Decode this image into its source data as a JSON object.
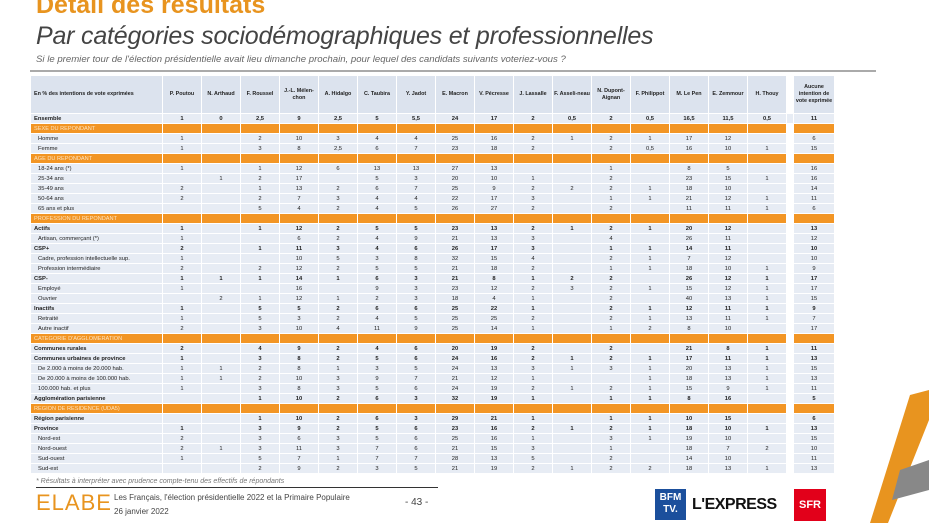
{
  "title": "Détail des résultats",
  "subtitle": "Par catégories sociodémographiques et professionnelles",
  "question": "Si le premier tour de l'élection présidentielle avait lieu dimanche prochain, pour lequel des candidats suivants voteriez-vous ?",
  "table": {
    "corner_label": "En % des intentions de vote exprimées",
    "columns": [
      "P. Poutou",
      "N. Arthaud",
      "F. Roussel",
      "J.-L. Mélen-chon",
      "A. Hidalgo",
      "C. Taubira",
      "Y. Jadot",
      "E. Macron",
      "V. Pécresse",
      "J. Lassalle",
      "F. Asseli-neau",
      "N. Dupont-Aignan",
      "F. Philippot",
      "M. Le Pen",
      "E. Zemmour",
      "H. Thouy",
      "Aucune intention de vote exprimée"
    ],
    "rows": [
      {
        "type": "total",
        "label": "Ensemble",
        "values": [
          "1",
          "0",
          "2,5",
          "9",
          "2,5",
          "5",
          "5,5",
          "24",
          "17",
          "2",
          "0,5",
          "2",
          "0,5",
          "16,5",
          "11,5",
          "0,5",
          "11"
        ]
      },
      {
        "type": "section",
        "label": "SEXE DU REPONDANT"
      },
      {
        "type": "sub",
        "label": "Homme",
        "values": [
          "1",
          "",
          "2",
          "10",
          "3",
          "4",
          "4",
          "25",
          "16",
          "2",
          "1",
          "2",
          "1",
          "17",
          "12",
          "",
          "6"
        ]
      },
      {
        "type": "sub",
        "label": "Femme",
        "values": [
          "1",
          "",
          "3",
          "8",
          "2,5",
          "6",
          "7",
          "23",
          "18",
          "2",
          "",
          "2",
          "0,5",
          "16",
          "10",
          "1",
          "15"
        ]
      },
      {
        "type": "section",
        "label": "AGE DU REPONDANT"
      },
      {
        "type": "sub",
        "label": "18-24 ans (*)",
        "values": [
          "1",
          "",
          "1",
          "12",
          "6",
          "13",
          "13",
          "27",
          "13",
          "",
          "",
          "1",
          "",
          "8",
          "5",
          "",
          "16"
        ]
      },
      {
        "type": "sub",
        "label": "25-34 ans",
        "values": [
          "",
          "1",
          "2",
          "17",
          "",
          "5",
          "3",
          "20",
          "10",
          "1",
          "",
          "2",
          "",
          "23",
          "15",
          "1",
          "16"
        ]
      },
      {
        "type": "sub",
        "label": "35-49 ans",
        "values": [
          "2",
          "",
          "1",
          "13",
          "2",
          "6",
          "7",
          "25",
          "9",
          "2",
          "2",
          "2",
          "1",
          "18",
          "10",
          "",
          "14"
        ]
      },
      {
        "type": "sub",
        "label": "50-64 ans",
        "values": [
          "2",
          "",
          "2",
          "7",
          "3",
          "4",
          "4",
          "22",
          "17",
          "3",
          "",
          "1",
          "1",
          "21",
          "12",
          "1",
          "11"
        ]
      },
      {
        "type": "sub",
        "label": "65 ans et plus",
        "values": [
          "",
          "",
          "5",
          "4",
          "2",
          "4",
          "5",
          "26",
          "27",
          "2",
          "",
          "2",
          "",
          "11",
          "11",
          "1",
          "6"
        ]
      },
      {
        "type": "section",
        "label": "PROFESSION DU REPONDANT"
      },
      {
        "type": "bold",
        "label": "Actifs",
        "values": [
          "1",
          "",
          "1",
          "12",
          "2",
          "5",
          "5",
          "23",
          "13",
          "2",
          "1",
          "2",
          "1",
          "20",
          "12",
          "",
          "13"
        ]
      },
      {
        "type": "sub",
        "label": "Artisan, commerçant (*)",
        "values": [
          "1",
          "",
          "",
          "6",
          "2",
          "4",
          "9",
          "21",
          "13",
          "3",
          "",
          "4",
          "",
          "26",
          "11",
          "",
          "12"
        ]
      },
      {
        "type": "bold",
        "label": "CSP+",
        "values": [
          "2",
          "",
          "1",
          "11",
          "3",
          "4",
          "6",
          "26",
          "17",
          "3",
          "",
          "1",
          "1",
          "14",
          "11",
          "",
          "10"
        ]
      },
      {
        "type": "sub",
        "label": "Cadre, profession intellectuelle sup.",
        "values": [
          "1",
          "",
          "",
          "10",
          "5",
          "3",
          "8",
          "32",
          "15",
          "4",
          "",
          "2",
          "1",
          "7",
          "12",
          "",
          "10"
        ]
      },
      {
        "type": "sub",
        "label": "Profession intermédiaire",
        "values": [
          "2",
          "",
          "2",
          "12",
          "2",
          "5",
          "5",
          "21",
          "18",
          "2",
          "",
          "1",
          "1",
          "18",
          "10",
          "1",
          "9"
        ]
      },
      {
        "type": "bold",
        "label": "CSP-",
        "values": [
          "1",
          "1",
          "1",
          "14",
          "1",
          "6",
          "3",
          "21",
          "8",
          "1",
          "2",
          "2",
          "",
          "26",
          "12",
          "1",
          "17"
        ]
      },
      {
        "type": "sub",
        "label": "Employé",
        "values": [
          "1",
          "",
          "",
          "16",
          "",
          "9",
          "3",
          "23",
          "12",
          "2",
          "3",
          "2",
          "1",
          "15",
          "12",
          "1",
          "17"
        ]
      },
      {
        "type": "sub",
        "label": "Ouvrier",
        "values": [
          "",
          "2",
          "1",
          "12",
          "1",
          "2",
          "3",
          "18",
          "4",
          "1",
          "",
          "2",
          "",
          "40",
          "13",
          "1",
          "15"
        ]
      },
      {
        "type": "bold",
        "label": "Inactifs",
        "values": [
          "1",
          "",
          "5",
          "5",
          "2",
          "6",
          "6",
          "25",
          "22",
          "1",
          "",
          "2",
          "1",
          "12",
          "11",
          "1",
          "9"
        ]
      },
      {
        "type": "sub",
        "label": "Retraité",
        "values": [
          "1",
          "",
          "5",
          "3",
          "2",
          "4",
          "5",
          "25",
          "25",
          "2",
          "",
          "2",
          "1",
          "13",
          "11",
          "1",
          "7"
        ]
      },
      {
        "type": "sub",
        "label": "Autre inactif",
        "values": [
          "2",
          "",
          "3",
          "10",
          "4",
          "11",
          "9",
          "25",
          "14",
          "1",
          "",
          "1",
          "2",
          "8",
          "10",
          "",
          "17"
        ]
      },
      {
        "type": "section",
        "label": "CATEGORIE D'AGGLOMERATION"
      },
      {
        "type": "bold",
        "label": "Communes rurales",
        "values": [
          "2",
          "",
          "4",
          "9",
          "2",
          "4",
          "6",
          "20",
          "19",
          "2",
          "",
          "2",
          "",
          "21",
          "8",
          "1",
          "11"
        ]
      },
      {
        "type": "bold",
        "label": "Communes urbaines de province",
        "values": [
          "1",
          "",
          "3",
          "8",
          "2",
          "5",
          "6",
          "24",
          "16",
          "2",
          "1",
          "2",
          "1",
          "17",
          "11",
          "1",
          "13"
        ]
      },
      {
        "type": "sub",
        "label": "De 2.000 à moins de 20.000 hab.",
        "values": [
          "1",
          "1",
          "2",
          "8",
          "1",
          "3",
          "5",
          "24",
          "13",
          "3",
          "1",
          "3",
          "1",
          "20",
          "13",
          "1",
          "15"
        ]
      },
      {
        "type": "sub",
        "label": "De 20.000 à moins de 100.000 hab.",
        "values": [
          "1",
          "1",
          "2",
          "10",
          "3",
          "9",
          "7",
          "21",
          "12",
          "1",
          "",
          "",
          "1",
          "18",
          "13",
          "1",
          "13"
        ]
      },
      {
        "type": "sub",
        "label": "100.000 hab. et plus",
        "values": [
          "1",
          "",
          "3",
          "8",
          "3",
          "5",
          "6",
          "24",
          "19",
          "2",
          "1",
          "2",
          "1",
          "15",
          "9",
          "1",
          "11"
        ]
      },
      {
        "type": "bold",
        "label": "Agglomération parisienne",
        "values": [
          "",
          "",
          "1",
          "10",
          "2",
          "6",
          "3",
          "32",
          "19",
          "1",
          "",
          "1",
          "1",
          "8",
          "16",
          "",
          "5"
        ]
      },
      {
        "type": "section",
        "label": "REGION DE RESIDENCE (UDA5)"
      },
      {
        "type": "bold",
        "label": "Région parisienne",
        "values": [
          "",
          "",
          "1",
          "10",
          "2",
          "6",
          "3",
          "29",
          "21",
          "1",
          "",
          "1",
          "1",
          "10",
          "15",
          "",
          "6"
        ]
      },
      {
        "type": "bold",
        "label": "Province",
        "values": [
          "1",
          "",
          "3",
          "9",
          "2",
          "5",
          "6",
          "23",
          "16",
          "2",
          "1",
          "2",
          "1",
          "18",
          "10",
          "1",
          "13"
        ]
      },
      {
        "type": "sub",
        "label": "Nord-est",
        "values": [
          "2",
          "",
          "3",
          "6",
          "3",
          "5",
          "6",
          "25",
          "16",
          "1",
          "",
          "3",
          "1",
          "19",
          "10",
          "",
          "15"
        ]
      },
      {
        "type": "sub",
        "label": "Nord-ouest",
        "values": [
          "2",
          "1",
          "3",
          "11",
          "3",
          "7",
          "6",
          "21",
          "15",
          "3",
          "",
          "1",
          "",
          "18",
          "7",
          "2",
          "10"
        ]
      },
      {
        "type": "sub",
        "label": "Sud-ouest",
        "values": [
          "1",
          "",
          "5",
          "7",
          "1",
          "7",
          "7",
          "28",
          "13",
          "5",
          "",
          "2",
          "",
          "14",
          "10",
          "",
          "11"
        ]
      },
      {
        "type": "sub",
        "label": "Sud-est",
        "values": [
          "",
          "",
          "2",
          "9",
          "2",
          "3",
          "5",
          "21",
          "19",
          "2",
          "1",
          "2",
          "2",
          "18",
          "13",
          "1",
          "13"
        ]
      }
    ]
  },
  "footnote": "* Résultats à interpréter avec prudence compte-tenu des effectifs de répondants",
  "footer": {
    "logo": "ELABE",
    "source_line1": "Les Français, l'élection présidentielle 2022 et la Primaire Populaire",
    "source_line2": "26 janvier 2022",
    "page": "- 43 -",
    "partners": [
      "BFM TV.",
      "L'EXPRESS",
      "SFR"
    ]
  },
  "colors": {
    "accent": "#F29524",
    "row_bg": "#E7ECF4",
    "header_bg": "#DCE3EE"
  }
}
